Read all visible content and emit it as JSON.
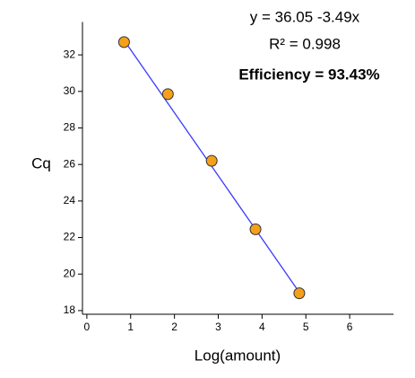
{
  "chart_data": {
    "type": "scatter",
    "annotations": [
      "y = 36.05 -3.49x",
      "R² = 0.998",
      "Efficiency = 93.43%"
    ],
    "x_label": "Log(amount)",
    "y_label": "Cq",
    "series": [
      {
        "color": "#f5a01a",
        "x": [
          0.85,
          1.85,
          2.85,
          3.85,
          4.85
        ],
        "values": [
          32.7,
          29.85,
          26.2,
          22.45,
          18.95
        ]
      },
      {
        "type": "line",
        "color": "#3a3aff",
        "x": [
          0.85,
          4.85
        ],
        "values": [
          32.8,
          19.0
        ]
      }
    ],
    "xlim": [
      -0.1,
      7
    ],
    "xticks": [
      0,
      1,
      2,
      3,
      4,
      5,
      6
    ],
    "ylim": [
      17.8,
      33.8
    ],
    "yticks": [
      18,
      20,
      22,
      24,
      26,
      28,
      30,
      32
    ],
    "grid": false
  }
}
